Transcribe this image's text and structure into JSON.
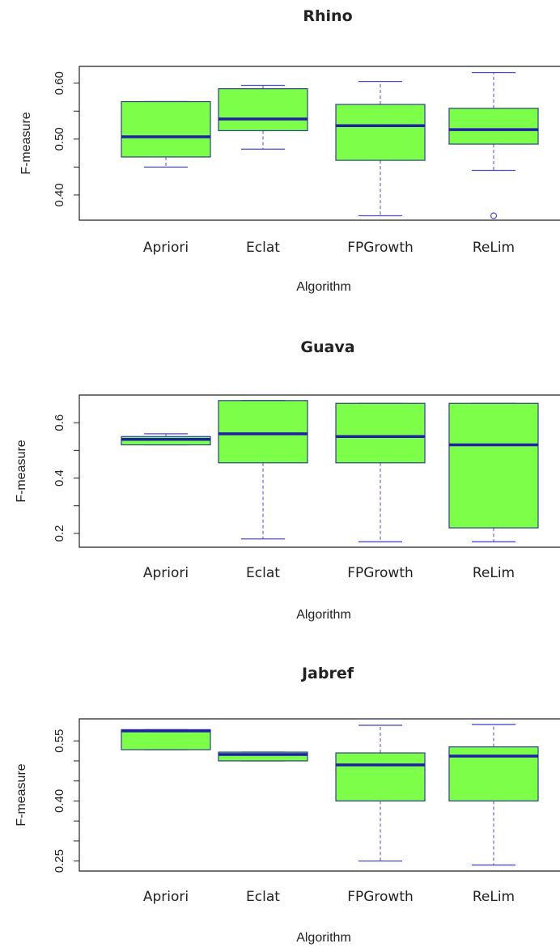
{
  "chart_data": [
    {
      "type": "boxplot",
      "title": "Rhino",
      "xlabel": "Algorithm",
      "ylabel": "F-measure",
      "ylim": [
        0.355,
        0.63
      ],
      "yticks": [
        0.4,
        0.45,
        0.5,
        0.55,
        0.6
      ],
      "ytick_labels": [
        "0.40",
        "",
        "0.50",
        "",
        "0.60"
      ],
      "categories": [
        "Apriori",
        "Eclat",
        "FPGrowth",
        "ReLim"
      ],
      "boxes": [
        {
          "min": 0.45,
          "q1": 0.468,
          "median": 0.504,
          "q3": 0.567,
          "max": 0.567,
          "outliers": []
        },
        {
          "min": 0.482,
          "q1": 0.515,
          "median": 0.536,
          "q3": 0.59,
          "max": 0.596,
          "outliers": []
        },
        {
          "min": 0.363,
          "q1": 0.462,
          "median": 0.524,
          "q3": 0.562,
          "max": 0.603,
          "outliers": []
        },
        {
          "min": 0.444,
          "q1": 0.491,
          "median": 0.517,
          "q3": 0.555,
          "max": 0.619,
          "outliers": [
            0.363
          ]
        }
      ]
    },
    {
      "type": "boxplot",
      "title": "Guava",
      "xlabel": "Algorithm",
      "ylabel": "F-measure",
      "ylim": [
        0.15,
        0.7
      ],
      "yticks": [
        0.2,
        0.3,
        0.4,
        0.5,
        0.6
      ],
      "ytick_labels": [
        "0.2",
        "",
        "0.4",
        "",
        "0.6"
      ],
      "categories": [
        "Apriori",
        "Eclat",
        "FPGrowth",
        "ReLim"
      ],
      "boxes": [
        {
          "min": 0.52,
          "q1": 0.52,
          "median": 0.54,
          "q3": 0.55,
          "max": 0.56,
          "outliers": []
        },
        {
          "min": 0.18,
          "q1": 0.455,
          "median": 0.56,
          "q3": 0.68,
          "max": 0.68,
          "outliers": []
        },
        {
          "min": 0.17,
          "q1": 0.455,
          "median": 0.55,
          "q3": 0.67,
          "max": 0.67,
          "outliers": []
        },
        {
          "min": 0.17,
          "q1": 0.22,
          "median": 0.52,
          "q3": 0.67,
          "max": 0.67,
          "outliers": []
        }
      ]
    },
    {
      "type": "boxplot",
      "title": "Jabref",
      "xlabel": "Algorithm",
      "ylabel": "F-measure",
      "ylim": [
        0.225,
        0.605
      ],
      "yticks": [
        0.25,
        0.3,
        0.35,
        0.4,
        0.45,
        0.5,
        0.55
      ],
      "ytick_labels": [
        "0.25",
        "",
        "",
        "0.40",
        "",
        "",
        "0.55"
      ],
      "categories": [
        "Apriori",
        "Eclat",
        "FPGrowth",
        "ReLim"
      ],
      "boxes": [
        {
          "min": 0.528,
          "q1": 0.528,
          "median": 0.575,
          "q3": 0.578,
          "max": 0.578,
          "outliers": []
        },
        {
          "min": 0.5,
          "q1": 0.5,
          "median": 0.516,
          "q3": 0.522,
          "max": 0.522,
          "outliers": []
        },
        {
          "min": 0.25,
          "q1": 0.4,
          "median": 0.49,
          "q3": 0.52,
          "max": 0.589,
          "outliers": []
        },
        {
          "min": 0.24,
          "q1": 0.4,
          "median": 0.512,
          "q3": 0.535,
          "max": 0.591,
          "outliers": []
        }
      ]
    }
  ],
  "colors": {
    "box_fill": "#7dff4a",
    "box_border": "#2d3e8c",
    "median": "#1f1fa8",
    "whisker": "#4b4bd0",
    "frame": "#222222"
  }
}
